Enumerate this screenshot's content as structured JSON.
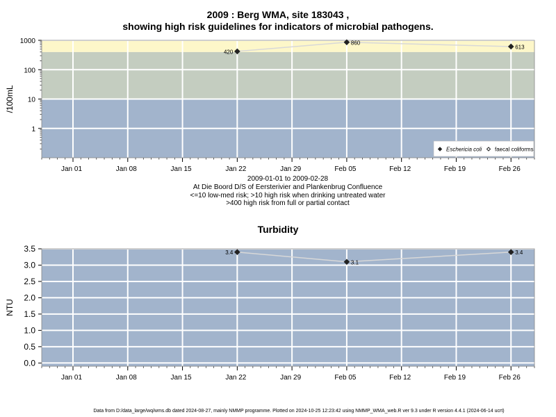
{
  "titles": {
    "main_line1": "2009 : Berg WMA, site 183043 ,",
    "main_line2": "showing high risk guidelines for indicators of microbial pathogens.",
    "turbidity": "Turbidity"
  },
  "notes": {
    "date_range": "2009-01-01 to 2009-02-28",
    "location": "At Die Boord D/S of Eersterivier and Plankenbrug Confluence",
    "risk_1": "<=10 low-med risk; >10 high risk when drinking untreated water",
    "risk_2": ">400 high risk from full or partial contact"
  },
  "footer": "Data from D:/data_large/wq/wms.db dated 2024-08-27, mainly NMMP programme. Plotted on 2024-10-25 12:23:42 using NMMP_WMA_web.R ver 9.3 under R version 4.4.1 (2024-06-14 ucrt)",
  "colors": {
    "band_low": "#a2b4cc",
    "band_high": "#c4cdc0",
    "band_contact": "#fdf7c9",
    "series_line": "#d8d8d8",
    "grid": "#ffffff",
    "marker": "#222222"
  },
  "chart_data": [
    {
      "type": "line",
      "title": "2009 : Berg WMA, site 183043 , showing high risk guidelines for indicators of microbial pathogens.",
      "xlabel": "",
      "ylabel": "/100mL",
      "yscale": "log",
      "ylim": [
        0.1,
        1000
      ],
      "yticks": [
        "1",
        "10",
        "100",
        "1000"
      ],
      "xlim": [
        "2008-12-28",
        "2009-03-01"
      ],
      "xticks": [
        "Jan 01",
        "Jan 08",
        "Jan 15",
        "Jan 22",
        "Jan 29",
        "Feb 05",
        "Feb 12",
        "Feb 19",
        "Feb 26"
      ],
      "grid": true,
      "legend_position": "bottom-right",
      "risk_bands": [
        {
          "from": 0.1,
          "to": 10,
          "label": "<=10 low-med risk"
        },
        {
          "from": 10,
          "to": 400,
          "label": ">10 high risk when drinking untreated water"
        },
        {
          "from": 400,
          "to": 1000,
          "label": ">400 high risk from full or partial contact"
        }
      ],
      "series": [
        {
          "name": "Eschericia coli",
          "marker": "filled-diamond",
          "x": [
            "2009-01-22",
            "2009-02-05",
            "2009-02-26"
          ],
          "values": [
            420,
            860,
            613
          ],
          "labels": [
            "420",
            "860",
            "613"
          ]
        },
        {
          "name": "faecal coliforms",
          "marker": "open-diamond",
          "x": [],
          "values": []
        }
      ]
    },
    {
      "type": "line",
      "title": "Turbidity",
      "xlabel": "",
      "ylabel": "NTU",
      "ylim": [
        -0.1,
        3.5
      ],
      "yticks": [
        "0.0",
        "0.5",
        "1.0",
        "1.5",
        "2.0",
        "2.5",
        "3.0",
        "3.5"
      ],
      "xlim": [
        "2008-12-28",
        "2009-03-01"
      ],
      "xticks": [
        "Jan 01",
        "Jan 08",
        "Jan 15",
        "Jan 22",
        "Jan 29",
        "Feb 05",
        "Feb 12",
        "Feb 19",
        "Feb 26"
      ],
      "grid": true,
      "series": [
        {
          "marker": "filled-diamond",
          "x": [
            "2009-01-22",
            "2009-02-05",
            "2009-02-26"
          ],
          "values": [
            3.4,
            3.1,
            3.4
          ],
          "labels": [
            "3.4",
            "3.1",
            "3.4"
          ]
        }
      ]
    }
  ]
}
